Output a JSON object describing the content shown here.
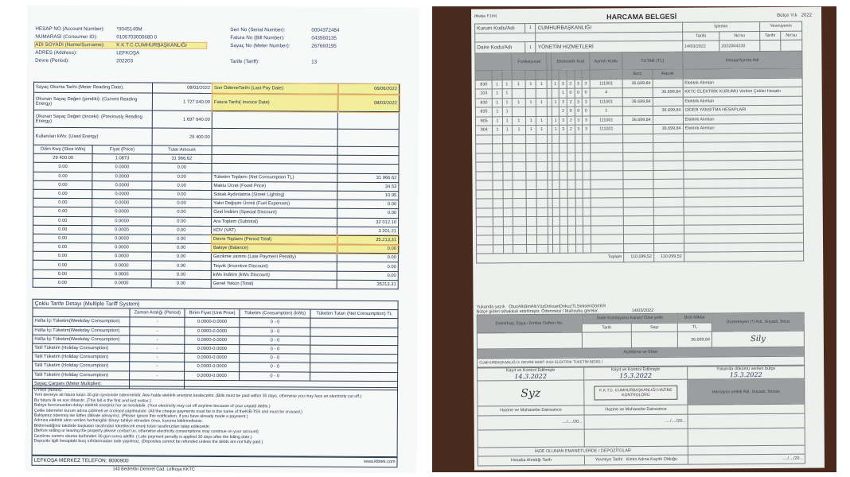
{
  "bill": {
    "header_left": [
      {
        "label": "HESAP NO (Account Number):",
        "value": "*0045149M"
      },
      {
        "label": "NUMARASI (Consumer ID):",
        "value": "0105703000680 0"
      },
      {
        "label": "ADI SOYADI (Name/Surname):",
        "value": "K.K.T.C.CUMHURBAŞKANLIĞI"
      },
      {
        "label": "ADRES (Address):",
        "value": "LEFKOŞA"
      },
      {
        "label": "Devre (Period):",
        "value": "202203"
      }
    ],
    "header_right": [
      {
        "label": "Seri No (Serial Number):",
        "value": "0004372484"
      },
      {
        "label": "Fatura No (Bill Number):",
        "value": "043560135"
      },
      {
        "label": "Sayaç No (Meter Number):",
        "value": "267660195"
      },
      {
        "label": "Tarife (Tariff):",
        "value": "13"
      }
    ],
    "reading": [
      {
        "label": "Sayaç Okuma Tarihi (Meter Reading Date):",
        "value": "08/03/2022"
      },
      {
        "label": "Okunan Sayaç Değeri (şimdiki): (Current Reading Energy)",
        "value": "1 727 040.00"
      },
      {
        "label": "Okunan Sayaç Değeri (önceki): (Previously Reading Energy)",
        "value": "1 697 640.00"
      },
      {
        "label": "Kullanılan kWs: (Used Energy)",
        "value": "29 400.00"
      }
    ],
    "dates": [
      {
        "label": "Son ÖdemeTarihi (Last Pay Date):",
        "value": "06/06/2022"
      },
      {
        "label": "Fatura Tarihi( Invoice Date)",
        "value": "08/03/2022"
      }
    ],
    "slice_headers": [
      "Dilim Kwş (Slice kWs)",
      "Fiyat (Price)",
      "Tutar Amount"
    ],
    "slices": [
      [
        "29 400.00",
        "1.0873",
        "31 966.62"
      ],
      [
        "0.00",
        "0.0000",
        "0.00"
      ],
      [
        "0.00",
        "0.0000",
        "0.00"
      ],
      [
        "0.00",
        "0.0000",
        "0.00"
      ],
      [
        "0.00",
        "0.0000",
        "0.00"
      ],
      [
        "0.00",
        "0.0000",
        "0.00"
      ],
      [
        "0.00",
        "0.0000",
        "0.00"
      ],
      [
        "0.00",
        "0.0000",
        "0.00"
      ],
      [
        "0.00",
        "0.0000",
        "0.00"
      ],
      [
        "0.00",
        "0.0000",
        "0.00"
      ],
      [
        "0.00",
        "0.0000",
        "0.00"
      ],
      [
        "0.00",
        "0.0000",
        "0.00"
      ],
      [
        "0.00",
        "0.0000",
        "0.00"
      ],
      [
        "0.00",
        "0.0000",
        "0.00"
      ],
      [
        "0.00",
        "0.0000",
        "0.00"
      ]
    ],
    "totals": [
      {
        "label": "Tüketim Toplamı (Net Consumption TL)",
        "value": "31 966.62"
      },
      {
        "label": "Maktu Ücret (Fixed Price)",
        "value": "34.53"
      },
      {
        "label": "Sokak Aydınlatma (Street Lighting)",
        "value": "10.95"
      },
      {
        "label": "Yakıt Değişim Ücreti (Fuel Expenses)",
        "value": "0.00"
      },
      {
        "label": "Özel İndirim (Special Discount)",
        "value": "0.00"
      },
      {
        "label": "Ara Toplam (Subtotal)",
        "value": "32 012.10"
      },
      {
        "label": "KDV (VAT)",
        "value": "3 201.21"
      },
      {
        "label": "Devre Toplamı (Period Total)",
        "value": "35.213,31",
        "hl": true
      },
      {
        "label": "Bakiye (Balance)",
        "value": "0.00",
        "hl": true
      },
      {
        "label": "Gecikme zammı (Late Payment Penalty)",
        "value": "0.00"
      },
      {
        "label": "Teşvik (Incentive Discount)",
        "value": "0.00"
      },
      {
        "label": "kWs İndirim (kWs Discount)",
        "value": "0.00"
      },
      {
        "label": "Genel Yekün (Total)",
        "value": "35213.31"
      }
    ],
    "multi_title": "Çoklu Tarife Detayı (Multiple Tariff System)",
    "multi_headers": [
      "",
      "Zaman Aralığı (Period)",
      "Birim Fiyat (Unit Price)",
      "Tüketim (Consumption) (kWs)",
      "Tüketim Tutarı (Net Consumption) TL"
    ],
    "multi_rows": [
      [
        "Hafta İçi Tüketim(Weekday Consumption)",
        "-",
        "0.0000-0.0000",
        "0 - 0",
        ""
      ],
      [
        "Hafta İçi Tüketim(Weekday Consumption)",
        "-",
        "0.0000-0.0000",
        "0 - 0",
        ""
      ],
      [
        "Hafta İçi Tüketim(Weekday Consumption)",
        "-",
        "0.0000-0.0000",
        "0 - 0",
        ""
      ],
      [
        "Tatil Tüketim (Holiday Consumption)",
        "-",
        "0.0000-0.0000",
        "0 - 0",
        ""
      ],
      [
        "Tatil Tüketim (Holiday Consumption)",
        "-",
        "0.0000-0.0000",
        "0 - 0",
        ""
      ],
      [
        "Tatil Tüketim (Holiday Consumption)",
        "-",
        "0.0000-0.0000",
        "0 - 0",
        ""
      ],
      [
        "Tatil Tüketim (Holiday Consumption)",
        "-",
        "0.0000-0.0000",
        "0 - 0",
        ""
      ]
    ],
    "multiplier_label": "Sayaç Çarpanı (Meter Multiplier):",
    "notes": [
      "UYARI (Notes):",
      "Yeni devreye ait fatura tutarı 30 gün içerisinde ödenmelidir. Aksi halde elektrik enerjiniz kesilecektir. (Bills must be paid within 30 days, otherwise you may face an electricity cut off.)",
      "Bu fatura ilk ve son ihbardır. (This bill is the first and last notice.)",
      "Bakiye borcunuzdan dolayı elektrik enerjiniz her an kesilebilir. (Your electricity may cut off anytime because of your unpaid debts.)",
      "Çekle ödemeler kurum adına çizilmeli ve crossed yapılmalıdır. (All the cheque payments must be in the name of theKIB-TEk and must be crossed.)",
      "Bakiyeniz ödenmiş ise lütfen dikkate almayınız. (Please ignore this notification, if you have already made a payment.)",
      "Adınıza elektrik alımı verilen herhangibir binayı tahliye etmeden önce, kuruma bildirmelisiniz.",
      "Bildirmediğiniz takdirde başkaları tarafından tüketilecek enerji tutarı tarafınızdan talep edilecektir.",
      "(Before selling or leaving the property please contact us, otherwise electricity consumptions may continue on your account)",
      "Gecikme zammı okuma tarihinden 30 gün sonra aktiftir. ( Late payment penalty is applied 30 days after the billing date.)",
      "Depozito ilgili hesaptaki borç sıfırlanmadan iade yapılmaz. (Deposites cannot be refunded unless the debts are not fully paid.)"
    ],
    "phone": "LEFKOŞA MERKEZ TELEFON: 8000900",
    "website": "www.kibtek.com",
    "address": "140 Bedrettin Demirel Cad. Lefkoşa KKTC"
  },
  "voucher": {
    "title": "HARCAMA BELGESİ",
    "form_no": "(Maliye F.104)",
    "budget_year_label": "Bütçe Yılı",
    "budget_year": "2022",
    "institution_label": "Kurum Kodu/Adı",
    "institution_code": "1",
    "institution_name": "CUMHURBAŞKANLIĞI",
    "dept_label": "Daire Kodu/Adı",
    "dept_code": "1",
    "dept_name": "YÖNETİM HİZMETLERİ",
    "ops_label": "İşlemin",
    "journal_label": "Yevmiyenin",
    "date_label": "Tarihi",
    "no_label": "No'su",
    "op_date": "14/03/2022",
    "op_no": "2022004220",
    "col_headers": {
      "func": "Fonksiyonel",
      "econ": "Ekonomik Kod",
      "ayrinti": "Ayrıntı Kodu",
      "tutar": "TUTAR (TL)",
      "borc": "Borç",
      "alacak": "Alacak",
      "hesap": "Hesap/Ayrıntı Adı"
    },
    "rows": [
      [
        "830",
        "1",
        "1",
        "1",
        "1",
        "1",
        "",
        "1",
        "3",
        "2",
        "3",
        "3",
        "111001",
        "36.699,84",
        "",
        "Elektrik Alımları"
      ],
      [
        "103",
        "1",
        "1",
        "",
        "",
        "",
        "",
        "",
        "1",
        "0",
        "0",
        "0",
        "4",
        "",
        "36.699,84",
        "KKTC ELEKTRİK KURUMU Verilen Çekler Hesabı"
      ],
      [
        "830",
        "1",
        "1",
        "1",
        "1",
        "1",
        "",
        "1",
        "3",
        "2",
        "3",
        "3",
        "111001",
        "36.699,84",
        "",
        "Elektrik Alımları"
      ],
      [
        "835",
        "1",
        "1",
        "",
        "",
        "",
        "",
        "",
        "2",
        "0",
        "0",
        "0",
        "1",
        "",
        "36.699,84",
        "GİDER YANSITMA HESAPLARI"
      ],
      [
        "905",
        "1",
        "1",
        "1",
        "1",
        "1",
        "",
        "1",
        "3",
        "2",
        "3",
        "3",
        "111001",
        "36.699,84",
        "",
        "Elektrik Alımları"
      ],
      [
        "904",
        "1",
        "1",
        "1",
        "1",
        "1",
        "",
        "1",
        "3",
        "2",
        "3",
        "3",
        "111001",
        "",
        "36.699,84",
        "Elektrik Alımları"
      ]
    ],
    "total_label": "Toplam",
    "total_debit": "110.099,52",
    "total_credit": "110.099,52",
    "amount_words_label": "Yukarıda yazılı",
    "amount_words": "OtuzAltıBinAltıYüzDoksanDokuzTLSeksenDörtKR",
    "accrual_text": "Bütçe gideri tahakkuk ettirilmiştir. Ödenmesi / Mahsubu gerekir.",
    "accrual_date": "14/03/2022",
    "inventory_label": "Demirbaş, Eşya / Ambar Defteri No.",
    "commission_label": "İhale Komisyonu Kararı/ Özel yetki",
    "gross_label": "Brüt Miktar",
    "tarih": "Tarih",
    "sayi": "Sayı",
    "tl": "TL",
    "gross_amount": "36.699,84",
    "prepared_label": "Düzenleyen (*) Adı, Soyadı, İmza",
    "explanation_label": "Açıklama ve Ekler",
    "explanation": "CUMHURBAŞKANLIĞI 3. DEVRE MART 2022 ELEKTRİK TÜKETİM BEDELİ",
    "checked_label": "Kayıt ve Kontrol Edilmiştir",
    "approved_label": "Yukarıda dökümü verilen bütçe",
    "date1": "14.3.2022",
    "date2": "15.3.2022",
    "date3": "15.3.2022",
    "stamp": "K.K.T.C. CUMHURBAŞKANLIĞI HAZİNE KONTROLÖRÜ",
    "treasury_label": "Hazine ve Muhasebe Dairesince",
    "spending_label": "Harcayıcı yetkili Adı, Soyadı, İmzası",
    "blank_date": "..../..../20...",
    "deposits_label": "İADE OLUNAN EMANETLERDE / DEPOZİTOLAR",
    "dep_cols": [
      "Hesaba Alındığı Tarih",
      "Yevmiye Tarihi",
      "Kimin Adına Kayıtlı Olduğu"
    ]
  }
}
